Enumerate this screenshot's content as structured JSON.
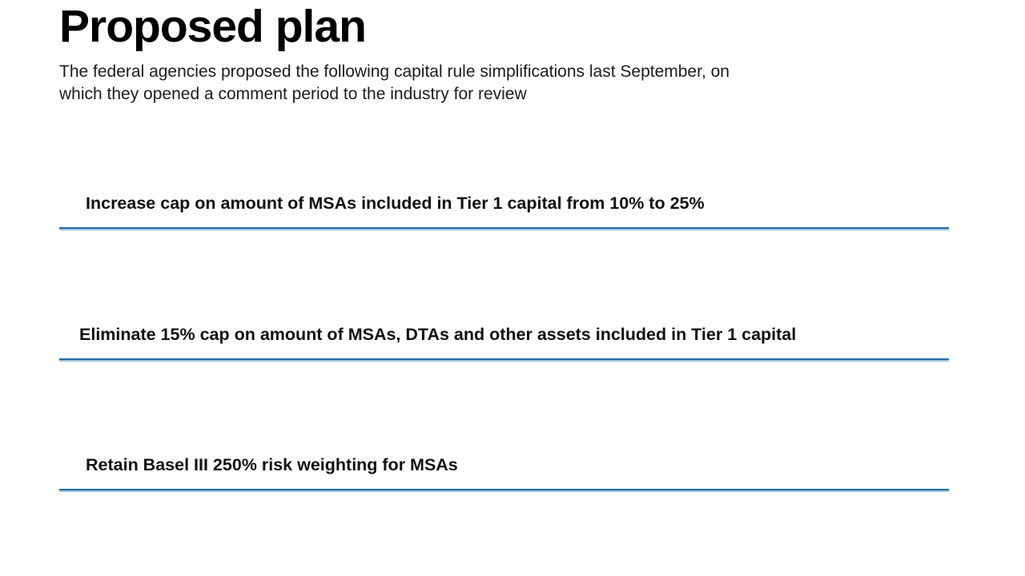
{
  "slide": {
    "title": "Proposed plan",
    "subtitle_lines": {
      "0": "The federal agencies proposed the following capital rule simplifications last September, on",
      "1": "which they opened a comment period to the industry for review"
    },
    "items": {
      "0": {
        "label": "Increase cap on amount of MSAs included in Tier 1 capital from 10% to 25%"
      },
      "1": {
        "label": "Eliminate 15% cap on amount of MSAs, DTAs and other assets included in Tier 1 capital"
      },
      "2": {
        "label": "Retain Basel III 250% risk weighting for MSAs"
      }
    },
    "colors": {
      "rule_blue": "#2368A6",
      "rule_blue_light": "#9DC1DD",
      "text": "#111111"
    }
  }
}
